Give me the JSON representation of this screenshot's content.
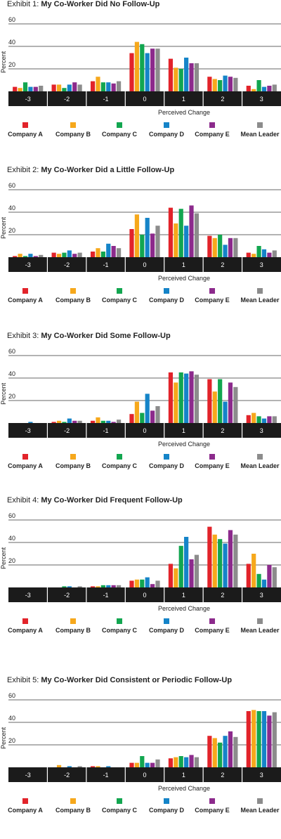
{
  "series_names": [
    "Company A",
    "Company B",
    "Company C",
    "Company D",
    "Company E",
    "Mean Leader"
  ],
  "colors": [
    "#e2232a",
    "#f6a81c",
    "#12a650",
    "#1584c8",
    "#8c2a8c",
    "#8c8c8c"
  ],
  "x_categories": [
    "-3",
    "-2",
    "-1",
    "0",
    "1",
    "2",
    "3"
  ],
  "ylabel": "Percent",
  "xlabel": "Perceived Change",
  "yticks": [
    "60",
    "40",
    "20"
  ],
  "ylim": [
    0,
    60
  ],
  "chart_data": [
    {
      "type": "bar",
      "title_prefix": "Exhibit 1: ",
      "title": "My Co-Worker Did No Follow-Up",
      "categories": [
        "-3",
        "-2",
        "-1",
        "0",
        "1",
        "2",
        "3"
      ],
      "xlabel": "Perceived Change",
      "ylabel": "Percent",
      "ylim": [
        0,
        60
      ],
      "series": [
        {
          "name": "Company A",
          "values": [
            4,
            6,
            9,
            34,
            29,
            13,
            5
          ]
        },
        {
          "name": "Company B",
          "values": [
            3,
            6,
            13,
            44,
            21,
            11,
            2
          ]
        },
        {
          "name": "Company C",
          "values": [
            8,
            3,
            8,
            42,
            20,
            10,
            10
          ]
        },
        {
          "name": "Company D",
          "values": [
            4,
            6,
            8,
            34,
            30,
            14,
            4
          ]
        },
        {
          "name": "Company E",
          "values": [
            4,
            8,
            7,
            38,
            25,
            13,
            5
          ]
        },
        {
          "name": "Mean Leader",
          "values": [
            5,
            6,
            9,
            38,
            25,
            12,
            6
          ]
        }
      ]
    },
    {
      "type": "bar",
      "title_prefix": "Exhibit 2: ",
      "title": "My Co-Worker Did a Little Follow-Up",
      "categories": [
        "-3",
        "-2",
        "-1",
        "0",
        "1",
        "2",
        "3"
      ],
      "xlabel": "Perceived Change",
      "ylabel": "Percent",
      "ylim": [
        0,
        60
      ],
      "series": [
        {
          "name": "Company A",
          "values": [
            1,
            4,
            5,
            25,
            44,
            19,
            4
          ]
        },
        {
          "name": "Company B",
          "values": [
            3,
            3,
            8,
            38,
            30,
            17,
            3
          ]
        },
        {
          "name": "Company C",
          "values": [
            1,
            4,
            5,
            20,
            43,
            20,
            10
          ]
        },
        {
          "name": "Company D",
          "values": [
            3,
            6,
            12,
            35,
            28,
            11,
            7
          ]
        },
        {
          "name": "Company E",
          "values": [
            1,
            3,
            10,
            21,
            46,
            17,
            4
          ]
        },
        {
          "name": "Mean Leader",
          "values": [
            2,
            4,
            8,
            28,
            39,
            17,
            6
          ]
        }
      ]
    },
    {
      "type": "bar",
      "title_prefix": "Exhibit 3: ",
      "title": "My Co-Worker Did Some Follow-Up",
      "categories": [
        "-3",
        "-2",
        "-1",
        "0",
        "1",
        "2",
        "3"
      ],
      "xlabel": "Perceived Change",
      "ylabel": "Percent",
      "ylim": [
        0,
        60
      ],
      "series": [
        {
          "name": "Company A",
          "values": [
            0,
            1,
            2,
            8,
            45,
            39,
            7
          ]
        },
        {
          "name": "Company B",
          "values": [
            0,
            2,
            5,
            19,
            36,
            28,
            9
          ]
        },
        {
          "name": "Company C",
          "values": [
            0,
            1,
            2,
            9,
            45,
            39,
            6
          ]
        },
        {
          "name": "Company D",
          "values": [
            1,
            4,
            2,
            26,
            44,
            19,
            4
          ]
        },
        {
          "name": "Company E",
          "values": [
            0,
            2,
            1,
            11,
            46,
            36,
            6
          ]
        },
        {
          "name": "Mean Leader",
          "values": [
            0,
            2,
            3,
            15,
            43,
            32,
            6
          ]
        }
      ]
    },
    {
      "type": "bar",
      "title_prefix": "Exhibit 4: ",
      "title": "My Co-Worker Did Frequent Follow-Up",
      "categories": [
        "-3",
        "-2",
        "-1",
        "0",
        "1",
        "2",
        "3"
      ],
      "xlabel": "Perceived Change",
      "ylabel": "Percent",
      "ylim": [
        0,
        60
      ],
      "series": [
        {
          "name": "Company A",
          "values": [
            0,
            0,
            1,
            6,
            21,
            54,
            21
          ]
        },
        {
          "name": "Company B",
          "values": [
            0,
            0,
            1,
            7,
            17,
            47,
            30
          ]
        },
        {
          "name": "Company C",
          "values": [
            0,
            1,
            2,
            7,
            37,
            43,
            12
          ]
        },
        {
          "name": "Company D",
          "values": [
            0,
            1,
            2,
            9,
            45,
            39,
            7
          ]
        },
        {
          "name": "Company E",
          "values": [
            0,
            0,
            2,
            3,
            25,
            51,
            20
          ]
        },
        {
          "name": "Mean Leader",
          "values": [
            0,
            1,
            2,
            6,
            29,
            47,
            18
          ]
        }
      ]
    },
    {
      "type": "bar",
      "title_prefix": "Exhibit 5: ",
      "title": "My Co-Worker Did Consistent or Periodic Follow-Up",
      "categories": [
        "-3",
        "-2",
        "-1",
        "0",
        "1",
        "2",
        "3"
      ],
      "xlabel": "Perceived Change",
      "ylabel": "Percent",
      "ylim": [
        0,
        60
      ],
      "series": [
        {
          "name": "Company A",
          "values": [
            0,
            0,
            1,
            4,
            8,
            28,
            50
          ]
        },
        {
          "name": "Company B",
          "values": [
            0,
            2,
            1,
            4,
            9,
            26,
            51
          ]
        },
        {
          "name": "Company C",
          "values": [
            0,
            0,
            0,
            10,
            10,
            22,
            50
          ]
        },
        {
          "name": "Company D",
          "values": [
            0,
            1,
            1,
            4,
            9,
            28,
            50
          ]
        },
        {
          "name": "Company E",
          "values": [
            0,
            0,
            0,
            4,
            11,
            32,
            46
          ]
        },
        {
          "name": "Mean Leader",
          "values": [
            0,
            1,
            0,
            7,
            9,
            27,
            49
          ]
        }
      ]
    }
  ]
}
